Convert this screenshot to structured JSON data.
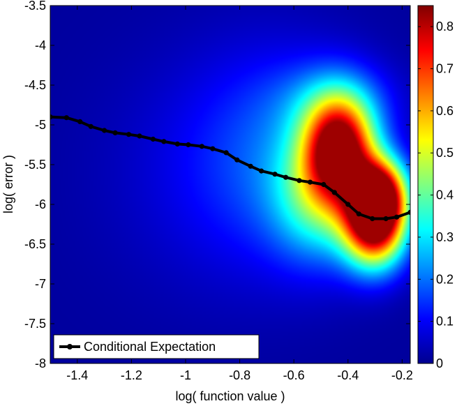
{
  "chart_data": {
    "type": "heatmap",
    "title": "",
    "xlabel": "log( function value )",
    "ylabel": "log( error )",
    "xlim": [
      -1.5,
      -0.17
    ],
    "ylim": [
      -8,
      -3.5
    ],
    "x_ticks": [
      -1.4,
      -1.2,
      -1,
      -0.8,
      -0.6,
      -0.4,
      -0.2
    ],
    "x_tick_labels": [
      "-1.4",
      "-1.2",
      "-1",
      "-0.8",
      "-0.6",
      "-0.4",
      "-0.2"
    ],
    "y_ticks": [
      -3.5,
      -4,
      -4.5,
      -5,
      -5.5,
      -6,
      -6.5,
      -7,
      -7.5,
      -8
    ],
    "y_tick_labels": [
      "-3.5",
      "-4",
      "-4.5",
      "-5",
      "-5.5",
      "-6",
      "-6.5",
      "-7",
      "-7.5",
      "-8"
    ],
    "colormap": "jet",
    "colorbar": {
      "min": 0,
      "max": 0.85,
      "ticks": [
        0,
        0.1,
        0.2,
        0.3,
        0.4,
        0.5,
        0.6,
        0.7,
        0.8
      ],
      "tick_labels": [
        "0",
        "0.1",
        "0.2",
        "0.3",
        "0.4",
        "0.5",
        "0.6",
        "0.7",
        "0.8"
      ]
    },
    "density_peaks": [
      {
        "x": -0.43,
        "y": -5.3,
        "sx": 0.09,
        "sy": 0.45,
        "value": 0.78
      },
      {
        "x": -0.3,
        "y": -6.25,
        "sx": 0.08,
        "sy": 0.38,
        "value": 0.82
      },
      {
        "x": -0.28,
        "y": -5.85,
        "sx": 0.07,
        "sy": 0.3,
        "value": 0.6
      },
      {
        "x": -0.5,
        "y": -5.9,
        "sx": 0.12,
        "sy": 0.55,
        "value": 0.3
      },
      {
        "x": -0.65,
        "y": -5.4,
        "sx": 0.22,
        "sy": 0.9,
        "value": 0.13
      },
      {
        "x": -0.45,
        "y": -4.7,
        "sx": 0.15,
        "sy": 0.35,
        "value": 0.12
      },
      {
        "x": -0.9,
        "y": -5.6,
        "sx": 0.3,
        "sy": 1.1,
        "value": 0.05
      }
    ],
    "series": [
      {
        "name": "Conditional Expectation",
        "color": "#000000",
        "x": [
          -1.5,
          -1.44,
          -1.39,
          -1.35,
          -1.3,
          -1.26,
          -1.21,
          -1.17,
          -1.12,
          -1.08,
          -1.03,
          -0.99,
          -0.94,
          -0.9,
          -0.85,
          -0.81,
          -0.76,
          -0.72,
          -0.67,
          -0.63,
          -0.58,
          -0.54,
          -0.49,
          -0.45,
          -0.4,
          -0.36,
          -0.31,
          -0.26,
          -0.22,
          -0.17
        ],
        "y": [
          -4.9,
          -4.91,
          -4.96,
          -5.02,
          -5.07,
          -5.1,
          -5.12,
          -5.14,
          -5.18,
          -5.21,
          -5.24,
          -5.25,
          -5.27,
          -5.3,
          -5.35,
          -5.44,
          -5.52,
          -5.58,
          -5.62,
          -5.66,
          -5.7,
          -5.72,
          -5.75,
          -5.85,
          -6.0,
          -6.12,
          -6.18,
          -6.18,
          -6.16,
          -6.1
        ]
      }
    ],
    "legend": {
      "placement": "bottom-left",
      "entries": [
        "Conditional Expectation"
      ]
    }
  }
}
